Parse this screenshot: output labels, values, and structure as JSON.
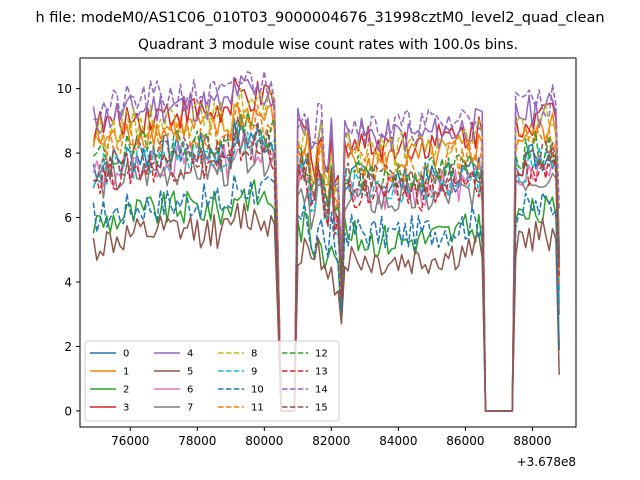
{
  "chart_data": {
    "type": "line",
    "suptitle": "h file: modeM0/AS1C06_010T03_9000004676_31998cztM0_level2_quad_clean",
    "title": "Quadrant 3 module wise count rates with 100.0s bins.",
    "xlabel": "",
    "ylabel": "",
    "x_offset_label": "+3.678e8",
    "xlim": [
      74500,
      89300
    ],
    "ylim": [
      -0.5,
      10.95
    ],
    "x_ticks": [
      76000,
      78000,
      80000,
      82000,
      84000,
      86000,
      88000
    ],
    "x_tick_labels": [
      "76000",
      "78000",
      "80000",
      "82000",
      "84000",
      "86000",
      "88000"
    ],
    "y_ticks": [
      0,
      2,
      4,
      6,
      8,
      10
    ],
    "y_tick_labels": [
      "0",
      "2",
      "4",
      "6",
      "8",
      "10"
    ],
    "x_range": [
      74900,
      88800
    ],
    "bin_seconds": 100,
    "gaps": [
      {
        "start": 80450,
        "end": 80950
      },
      {
        "start": 86550,
        "end": 87450
      }
    ],
    "dips": [
      {
        "center": 81450,
        "depth": 0.38
      },
      {
        "center": 81850,
        "depth": 0.42
      },
      {
        "center": 82150,
        "depth": 0.62
      },
      {
        "center": 82300,
        "depth": 0.45
      }
    ],
    "series": [
      {
        "name": "0",
        "color": "#1f77b4",
        "dash": "solid",
        "base": 7.6
      },
      {
        "name": "1",
        "color": "#ff7f0e",
        "dash": "solid",
        "base": 8.3
      },
      {
        "name": "2",
        "color": "#2ca02c",
        "dash": "solid",
        "base": 5.8
      },
      {
        "name": "3",
        "color": "#d62728",
        "dash": "solid",
        "base": 8.8
      },
      {
        "name": "4",
        "color": "#9467bd",
        "dash": "solid",
        "base": 9.0
      },
      {
        "name": "5",
        "color": "#8c564b",
        "dash": "solid",
        "base": 5.1
      },
      {
        "name": "6",
        "color": "#e377c2",
        "dash": "solid",
        "base": 7.3
      },
      {
        "name": "7",
        "color": "#7f7f7f",
        "dash": "solid",
        "base": 7.0
      },
      {
        "name": "8",
        "color": "#bcbd22",
        "dash": "dashed",
        "base": 8.6
      },
      {
        "name": "9",
        "color": "#17becf",
        "dash": "dashed",
        "base": 7.4
      },
      {
        "name": "10",
        "color": "#1f77b4",
        "dash": "dashed",
        "base": 6.0
      },
      {
        "name": "11",
        "color": "#ff7f0e",
        "dash": "dashed",
        "base": 8.1
      },
      {
        "name": "12",
        "color": "#2ca02c",
        "dash": "dashed",
        "base": 7.8
      },
      {
        "name": "13",
        "color": "#d62728",
        "dash": "dashed",
        "base": 7.2
      },
      {
        "name": "14",
        "color": "#9467bd",
        "dash": "dashed",
        "base": 9.3
      },
      {
        "name": "15",
        "color": "#8c564b",
        "dash": "dashed",
        "base": 7.6
      }
    ],
    "legend": {
      "position": "lower-left",
      "columns": 4
    }
  }
}
